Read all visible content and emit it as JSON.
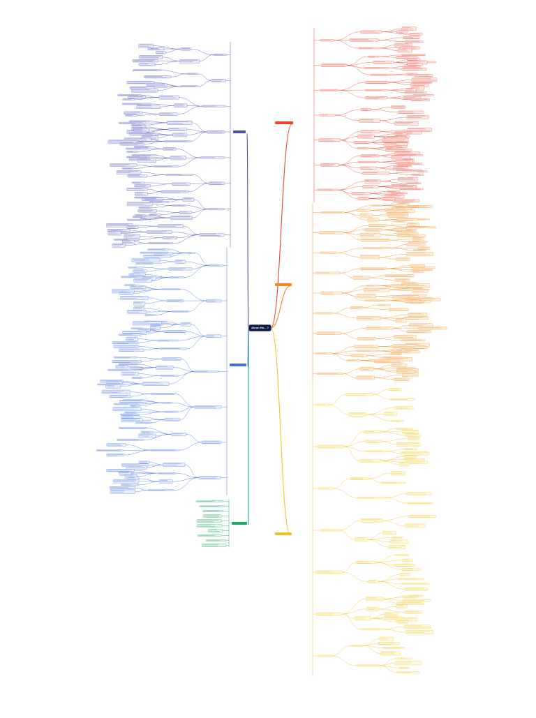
{
  "root": {
    "label": "Akron Ho... ?"
  },
  "branches": [
    {
      "name": "branch-red",
      "color": "#e8412c",
      "fill": "#fde8e5",
      "label": ""
    },
    {
      "name": "branch-orange",
      "color": "#f28a1c",
      "fill": "#fef0e0",
      "label": ""
    },
    {
      "name": "branch-yellow",
      "color": "#f2c224",
      "fill": "#fef8dc",
      "label": ""
    },
    {
      "name": "branch-green",
      "color": "#19a86a",
      "fill": "#e2f6ec",
      "label": ""
    },
    {
      "name": "branch-blue",
      "color": "#3f6fe0",
      "fill": "#e6edfc",
      "label": ""
    },
    {
      "name": "branch-navy",
      "color": "#4a4fb8",
      "fill": "#e9e9f8",
      "label": ""
    }
  ],
  "footer": {
    "text": ""
  }
}
